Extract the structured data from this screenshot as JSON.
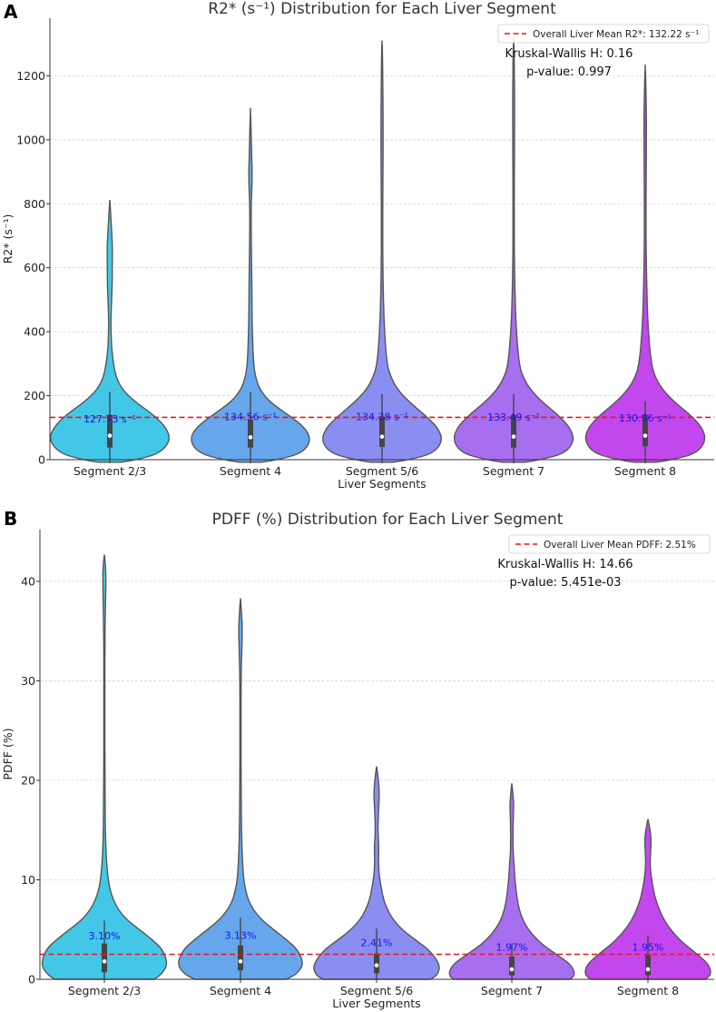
{
  "chart_data": [
    {
      "panel": "A",
      "type": "violin",
      "title": "R2* (s⁻¹) Distribution for Each Liver Segment",
      "xlabel": "Liver Segments",
      "ylabel": "R2* (s⁻¹)",
      "ylim": [
        0,
        1380
      ],
      "yticks": [
        0,
        200,
        400,
        600,
        800,
        1000,
        1200
      ],
      "ytick_labels": [
        "0",
        "200",
        "400",
        "600",
        "800",
        "1000",
        "1200"
      ],
      "grid": true,
      "categories": [
        "Segment 2/3",
        "Segment 4",
        "Segment 5/6",
        "Segment 7",
        "Segment 8"
      ],
      "colors": [
        "#42c8e6",
        "#66a7ec",
        "#8a8ef0",
        "#a86ef0",
        "#c248ee"
      ],
      "overall_mean": 132.22,
      "legend": {
        "label": "Overall Liver Mean R2*: 132.22 s⁻¹",
        "placement": "top-right"
      },
      "stats": [
        "Kruskal-Wallis H: 0.16",
        "p-value: 0.997"
      ],
      "means": [
        127.73,
        134.56,
        134.38,
        133.49,
        130.96
      ],
      "mean_labels": [
        "127.73 s⁻¹",
        "134.56 s⁻¹",
        "134.38 s⁻¹",
        "133.49 s⁻¹",
        "130.96 s⁻¹"
      ],
      "medians": [
        75,
        70,
        72,
        72,
        75
      ],
      "q1": [
        38,
        38,
        40,
        38,
        42
      ],
      "q3": [
        140,
        125,
        135,
        140,
        140
      ],
      "whisker_high": [
        212,
        212,
        205,
        205,
        183
      ],
      "maxima": [
        812,
        1100,
        1310,
        1320,
        1235
      ],
      "density": [
        [
          [
            -8,
            0.18
          ],
          [
            0,
            0.45
          ],
          [
            20,
            0.82
          ],
          [
            60,
            1.0
          ],
          [
            100,
            0.93
          ],
          [
            140,
            0.72
          ],
          [
            180,
            0.42
          ],
          [
            220,
            0.2
          ],
          [
            260,
            0.1
          ],
          [
            300,
            0.06
          ],
          [
            350,
            0.03
          ],
          [
            400,
            0.02
          ],
          [
            450,
            0.02
          ],
          [
            500,
            0.03
          ],
          [
            550,
            0.04
          ],
          [
            600,
            0.04
          ],
          [
            650,
            0.045
          ],
          [
            700,
            0.035
          ],
          [
            750,
            0.02
          ],
          [
            790,
            0.008
          ],
          [
            812,
            0
          ]
        ],
        [
          [
            -8,
            0.18
          ],
          [
            0,
            0.45
          ],
          [
            20,
            0.85
          ],
          [
            60,
            1.0
          ],
          [
            100,
            0.9
          ],
          [
            140,
            0.62
          ],
          [
            180,
            0.32
          ],
          [
            220,
            0.15
          ],
          [
            260,
            0.08
          ],
          [
            300,
            0.05
          ],
          [
            400,
            0.03
          ],
          [
            500,
            0.025
          ],
          [
            600,
            0.02
          ],
          [
            700,
            0.012
          ],
          [
            800,
            0.012
          ],
          [
            880,
            0.03
          ],
          [
            950,
            0.02
          ],
          [
            1030,
            0.01
          ],
          [
            1100,
            0
          ]
        ],
        [
          [
            -8,
            0.18
          ],
          [
            0,
            0.45
          ],
          [
            20,
            0.85
          ],
          [
            60,
            1.0
          ],
          [
            100,
            0.92
          ],
          [
            140,
            0.7
          ],
          [
            180,
            0.45
          ],
          [
            220,
            0.25
          ],
          [
            260,
            0.14
          ],
          [
            300,
            0.08
          ],
          [
            400,
            0.04
          ],
          [
            500,
            0.022
          ],
          [
            600,
            0.014
          ],
          [
            700,
            0.01
          ],
          [
            900,
            0.014
          ],
          [
            1000,
            0.018
          ],
          [
            1100,
            0.016
          ],
          [
            1200,
            0.011
          ],
          [
            1280,
            0.006
          ],
          [
            1310,
            0
          ]
        ],
        [
          [
            -8,
            0.18
          ],
          [
            0,
            0.45
          ],
          [
            20,
            0.85
          ],
          [
            60,
            1.0
          ],
          [
            100,
            0.93
          ],
          [
            140,
            0.73
          ],
          [
            180,
            0.47
          ],
          [
            220,
            0.27
          ],
          [
            260,
            0.15
          ],
          [
            300,
            0.09
          ],
          [
            400,
            0.045
          ],
          [
            500,
            0.025
          ],
          [
            600,
            0.015
          ],
          [
            700,
            0.01
          ],
          [
            900,
            0.012
          ],
          [
            1000,
            0.014
          ],
          [
            1100,
            0.015
          ],
          [
            1200,
            0.014
          ],
          [
            1280,
            0.007
          ],
          [
            1320,
            0
          ]
        ],
        [
          [
            -8,
            0.18
          ],
          [
            0,
            0.45
          ],
          [
            20,
            0.85
          ],
          [
            60,
            1.0
          ],
          [
            100,
            0.94
          ],
          [
            140,
            0.74
          ],
          [
            180,
            0.48
          ],
          [
            220,
            0.28
          ],
          [
            260,
            0.16
          ],
          [
            300,
            0.1
          ],
          [
            400,
            0.05
          ],
          [
            500,
            0.03
          ],
          [
            600,
            0.02
          ],
          [
            700,
            0.014
          ],
          [
            800,
            0.014
          ],
          [
            900,
            0.016
          ],
          [
            1000,
            0.02
          ],
          [
            1100,
            0.018
          ],
          [
            1180,
            0.01
          ],
          [
            1235,
            0
          ]
        ]
      ]
    },
    {
      "panel": "B",
      "type": "violin",
      "title": "PDFF (%) Distribution for Each Liver Segment",
      "xlabel": "Liver Segments",
      "ylabel": "PDFF (%)",
      "ylim": [
        0,
        45.2
      ],
      "yticks": [
        0,
        10,
        20,
        30,
        40
      ],
      "ytick_labels": [
        "0",
        "10",
        "20",
        "30",
        "40"
      ],
      "grid": true,
      "categories": [
        "Segment 2/3",
        "Segment 4",
        "Segment 5/6",
        "Segment 7",
        "Segment 8"
      ],
      "colors": [
        "#42c8e6",
        "#66a7ec",
        "#8a8ef0",
        "#a86ef0",
        "#c248ee"
      ],
      "overall_mean": 2.51,
      "legend": {
        "label": "Overall Liver Mean PDFF: 2.51%",
        "placement": "top-right"
      },
      "stats": [
        "Kruskal-Wallis H: 14.66",
        "p-value: 5.451e-03"
      ],
      "means": [
        3.1,
        3.13,
        2.41,
        1.97,
        1.95
      ],
      "mean_labels": [
        "3.10%",
        "3.13%",
        "2.41%",
        "1.97%",
        "1.95%"
      ],
      "medians": [
        1.8,
        1.8,
        1.4,
        1.0,
        1.0
      ],
      "q1": [
        0.7,
        0.9,
        0.6,
        0.4,
        0.4
      ],
      "q3": [
        3.6,
        3.4,
        2.6,
        2.3,
        2.5
      ],
      "whisker_high": [
        5.9,
        6.2,
        5.1,
        3.6,
        4.4
      ],
      "maxima": [
        42.7,
        38.3,
        21.4,
        19.7,
        16.1
      ],
      "density": [
        [
          [
            0,
            0.78
          ],
          [
            0.5,
            0.9
          ],
          [
            1.5,
            1.0
          ],
          [
            3,
            0.92
          ],
          [
            4,
            0.75
          ],
          [
            5,
            0.55
          ],
          [
            6,
            0.35
          ],
          [
            7,
            0.22
          ],
          [
            8,
            0.14
          ],
          [
            9,
            0.09
          ],
          [
            10,
            0.06
          ],
          [
            12,
            0.03
          ],
          [
            15,
            0.015
          ],
          [
            20,
            0.01
          ],
          [
            25,
            0.008
          ],
          [
            30,
            0.008
          ],
          [
            35,
            0.01
          ],
          [
            38,
            0.018
          ],
          [
            40,
            0.025
          ],
          [
            41.5,
            0.02
          ],
          [
            42.7,
            0
          ]
        ],
        [
          [
            0,
            0.72
          ],
          [
            0.5,
            0.88
          ],
          [
            1.5,
            1.0
          ],
          [
            3,
            0.9
          ],
          [
            4,
            0.72
          ],
          [
            5,
            0.52
          ],
          [
            6,
            0.33
          ],
          [
            7,
            0.2
          ],
          [
            8,
            0.12
          ],
          [
            9,
            0.08
          ],
          [
            10,
            0.05
          ],
          [
            12,
            0.03
          ],
          [
            15,
            0.015
          ],
          [
            20,
            0.01
          ],
          [
            25,
            0.008
          ],
          [
            30,
            0.01
          ],
          [
            33,
            0.02
          ],
          [
            35,
            0.03
          ],
          [
            36.5,
            0.02
          ],
          [
            38.3,
            0
          ]
        ],
        [
          [
            0,
            0.85
          ],
          [
            0.5,
            0.97
          ],
          [
            1.5,
            1.0
          ],
          [
            3,
            0.82
          ],
          [
            4,
            0.6
          ],
          [
            5,
            0.4
          ],
          [
            6,
            0.26
          ],
          [
            7,
            0.17
          ],
          [
            8,
            0.11
          ],
          [
            9,
            0.08
          ],
          [
            10,
            0.05
          ],
          [
            11,
            0.035
          ],
          [
            12,
            0.03
          ],
          [
            13,
            0.035
          ],
          [
            14,
            0.03
          ],
          [
            15,
            0.02
          ],
          [
            17,
            0.03
          ],
          [
            18.5,
            0.045
          ],
          [
            20,
            0.03
          ],
          [
            21.4,
            0
          ]
        ],
        [
          [
            0,
            0.92
          ],
          [
            0.5,
            1.0
          ],
          [
            1.5,
            0.93
          ],
          [
            2.5,
            0.7
          ],
          [
            3.5,
            0.48
          ],
          [
            4.5,
            0.32
          ],
          [
            5.5,
            0.21
          ],
          [
            6.5,
            0.14
          ],
          [
            7.5,
            0.1
          ],
          [
            8.5,
            0.075
          ],
          [
            10,
            0.05
          ],
          [
            11,
            0.04
          ],
          [
            12,
            0.03
          ],
          [
            13,
            0.02
          ],
          [
            15,
            0.018
          ],
          [
            16.5,
            0.025
          ],
          [
            17.5,
            0.03
          ],
          [
            18.5,
            0.02
          ],
          [
            19.7,
            0
          ]
        ],
        [
          [
            0,
            0.9
          ],
          [
            0.5,
            1.0
          ],
          [
            1.5,
            0.96
          ],
          [
            2.5,
            0.78
          ],
          [
            3.5,
            0.58
          ],
          [
            4.5,
            0.42
          ],
          [
            5.5,
            0.3
          ],
          [
            6.5,
            0.21
          ],
          [
            7.5,
            0.15
          ],
          [
            8.5,
            0.1
          ],
          [
            10,
            0.06
          ],
          [
            11,
            0.04
          ],
          [
            12,
            0.035
          ],
          [
            13,
            0.045
          ],
          [
            14,
            0.05
          ],
          [
            15,
            0.035
          ],
          [
            16.1,
            0
          ]
        ]
      ]
    }
  ]
}
